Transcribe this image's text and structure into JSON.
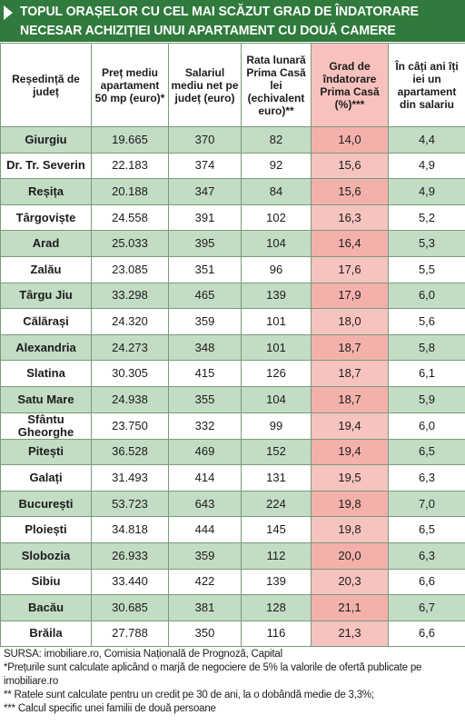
{
  "title": {
    "line1": "TOPUL ORAȘELOR CU CEL MAI SCĂZUT GRAD DE ÎNDATORARE",
    "line2": "NECESAR ACHIZIȚIEI UNUI APARTAMENT CU DOUĂ CAMERE"
  },
  "columns": [
    "Reședință de județ",
    "Preț mediu apartament 50 mp (euro)*",
    "Salariul mediu net pe județ (euro)",
    "Rata lunară Prima Casă lei (echivalent euro)**",
    "Grad de îndatorare Prima Casă (%)***",
    "În câți ani îți iei un apartament din salariu"
  ],
  "rows": [
    {
      "city": "Giurgiu",
      "price": "19.665",
      "salary": "370",
      "rate": "82",
      "debt": "14,0",
      "years": "4,4"
    },
    {
      "city": "Dr. Tr. Severin",
      "price": "22.183",
      "salary": "374",
      "rate": "92",
      "debt": "15,6",
      "years": "4,9"
    },
    {
      "city": "Reșița",
      "price": "20.188",
      "salary": "347",
      "rate": "84",
      "debt": "15,6",
      "years": "4,9"
    },
    {
      "city": "Târgoviște",
      "price": "24.558",
      "salary": "391",
      "rate": "102",
      "debt": "16,3",
      "years": "5,2"
    },
    {
      "city": "Arad",
      "price": "25.033",
      "salary": "395",
      "rate": "104",
      "debt": "16,4",
      "years": "5,3"
    },
    {
      "city": "Zalău",
      "price": "23.085",
      "salary": "351",
      "rate": "96",
      "debt": "17,6",
      "years": "5,5"
    },
    {
      "city": "Târgu Jiu",
      "price": "33.298",
      "salary": "465",
      "rate": "139",
      "debt": "17,9",
      "years": "6,0"
    },
    {
      "city": "Călărași",
      "price": "24.320",
      "salary": "359",
      "rate": "101",
      "debt": "18,0",
      "years": "5,6"
    },
    {
      "city": "Alexandria",
      "price": "24.273",
      "salary": "348",
      "rate": "101",
      "debt": "18,7",
      "years": "5,8"
    },
    {
      "city": "Slatina",
      "price": "30.305",
      "salary": "415",
      "rate": "126",
      "debt": "18,7",
      "years": "6,1"
    },
    {
      "city": "Satu Mare",
      "price": "24.938",
      "salary": "355",
      "rate": "104",
      "debt": "18,7",
      "years": "5,9"
    },
    {
      "city": "Sfântu Gheorghe",
      "price": "23.750",
      "salary": "332",
      "rate": "99",
      "debt": "19,4",
      "years": "6,0"
    },
    {
      "city": "Pitești",
      "price": "36.528",
      "salary": "469",
      "rate": "152",
      "debt": "19,4",
      "years": "6,5"
    },
    {
      "city": "Galați",
      "price": "31.493",
      "salary": "414",
      "rate": "131",
      "debt": "19,5",
      "years": "6,3"
    },
    {
      "city": "București",
      "price": "53.723",
      "salary": "643",
      "rate": "224",
      "debt": "19,8",
      "years": "7,0"
    },
    {
      "city": "Ploiești",
      "price": "34.818",
      "salary": "444",
      "rate": "145",
      "debt": "19,8",
      "years": "6,5"
    },
    {
      "city": "Slobozia",
      "price": "26.933",
      "salary": "359",
      "rate": "112",
      "debt": "20,0",
      "years": "6,3"
    },
    {
      "city": "Sibiu",
      "price": "33.440",
      "salary": "422",
      "rate": "139",
      "debt": "20,3",
      "years": "6,6"
    },
    {
      "city": "Bacău",
      "price": "30.685",
      "salary": "381",
      "rate": "128",
      "debt": "21,1",
      "years": "6,7"
    },
    {
      "city": "Brăila",
      "price": "27.788",
      "salary": "350",
      "rate": "116",
      "debt": "21,3",
      "years": "6,6"
    }
  ],
  "notes": [
    "SURSA: imobiliare.ro, Comisia Națională de Prognoză, Capital",
    "*Prețurile sunt calculate aplicând o marjă de negociere de 5% la valorile de ofertă publicate pe imobiliare.ro",
    "** Ratele sunt calculate pentru un credit pe 30 de ani, la o dobândă medie de 3,3%;",
    "*** Calcul specific unei familii de două persoane"
  ],
  "colors": {
    "header_bg": "#2f7a3c",
    "row_green": "#c3dcc4",
    "row_white": "#ffffff",
    "debt_dark": "#f4b1ab",
    "debt_light": "#f6c3be"
  }
}
